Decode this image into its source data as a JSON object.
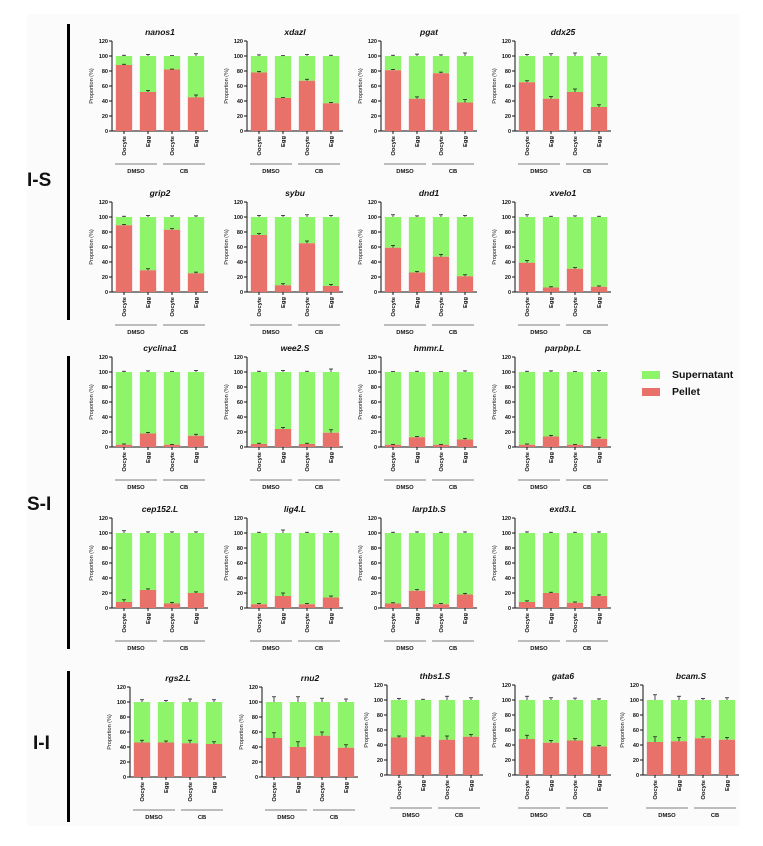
{
  "legend": [
    {
      "name": "Supernatant",
      "color": "#8ef56b"
    },
    {
      "name": "Pellet",
      "color": "#e8716a"
    }
  ],
  "groups": [
    {
      "label": "I-S"
    },
    {
      "label": "S-I"
    },
    {
      "label": "I-I"
    }
  ],
  "chart_data": [
    {
      "type": "bar",
      "stacked": true,
      "group": "I-S",
      "title": "nanos1",
      "ylabel": "Proportion (%)",
      "ylim": [
        0,
        120
      ],
      "yticks": [
        0,
        20,
        40,
        60,
        80,
        100,
        120
      ],
      "categories": [
        "Oocyte",
        "Egg",
        "Oocyte",
        "Egg"
      ],
      "treatments": [
        "DMSO",
        "CB"
      ],
      "series": [
        {
          "name": "Pellet",
          "values": [
            88,
            52,
            82,
            45
          ]
        },
        {
          "name": "Supernatant",
          "values": [
            12,
            48,
            18,
            55
          ]
        }
      ],
      "errors": [
        1,
        2,
        0.5,
        3
      ]
    },
    {
      "type": "bar",
      "stacked": true,
      "group": "I-S",
      "title": "xdazl",
      "ylabel": "Proportion (%)",
      "ylim": [
        0,
        120
      ],
      "yticks": [
        0,
        20,
        40,
        60,
        80,
        100,
        120
      ],
      "categories": [
        "Oocyte",
        "Egg",
        "Oocyte",
        "Egg"
      ],
      "treatments": [
        "DMSO",
        "CB"
      ],
      "series": [
        {
          "name": "Pellet",
          "values": [
            78,
            44,
            67,
            37
          ]
        },
        {
          "name": "Supernatant",
          "values": [
            22,
            56,
            33,
            63
          ]
        }
      ],
      "errors": [
        1.5,
        0.5,
        2,
        1
      ]
    },
    {
      "type": "bar",
      "stacked": true,
      "group": "I-S",
      "title": "pgat",
      "ylabel": "Proportion (%)",
      "ylim": [
        0,
        120
      ],
      "yticks": [
        0,
        20,
        40,
        60,
        80,
        100,
        120
      ],
      "categories": [
        "Oocyte",
        "Egg",
        "Oocyte",
        "Egg"
      ],
      "treatments": [
        "DMSO",
        "CB"
      ],
      "series": [
        {
          "name": "Pellet",
          "values": [
            81,
            43,
            77,
            38
          ]
        },
        {
          "name": "Supernatant",
          "values": [
            19,
            57,
            23,
            62
          ]
        }
      ],
      "errors": [
        1,
        2.5,
        1.5,
        4
      ]
    },
    {
      "type": "bar",
      "stacked": true,
      "group": "I-S",
      "title": "ddx25",
      "ylabel": "Proportion (%)",
      "ylim": [
        0,
        120
      ],
      "yticks": [
        0,
        20,
        40,
        60,
        80,
        100,
        120
      ],
      "categories": [
        "Oocyte",
        "Egg",
        "Oocyte",
        "Egg"
      ],
      "treatments": [
        "DMSO",
        "CB"
      ],
      "series": [
        {
          "name": "Pellet",
          "values": [
            65,
            43,
            52,
            32
          ]
        },
        {
          "name": "Supernatant",
          "values": [
            35,
            57,
            48,
            68
          ]
        }
      ],
      "errors": [
        2,
        3,
        4,
        3
      ]
    },
    {
      "type": "bar",
      "stacked": true,
      "group": "I-S",
      "title": "grip2",
      "ylabel": "Proportion (%)",
      "ylim": [
        0,
        120
      ],
      "yticks": [
        0,
        20,
        40,
        60,
        80,
        100,
        120
      ],
      "categories": [
        "Oocyte",
        "Egg",
        "Oocyte",
        "Egg"
      ],
      "treatments": [
        "DMSO",
        "CB"
      ],
      "series": [
        {
          "name": "Pellet",
          "values": [
            89,
            29,
            83,
            25
          ]
        },
        {
          "name": "Supernatant",
          "values": [
            11,
            71,
            17,
            75
          ]
        }
      ],
      "errors": [
        1,
        2,
        1.5,
        1.5
      ]
    },
    {
      "type": "bar",
      "stacked": true,
      "group": "I-S",
      "title": "sybu",
      "ylabel": "Proportion (%)",
      "ylim": [
        0,
        120
      ],
      "yticks": [
        0,
        20,
        40,
        60,
        80,
        100,
        120
      ],
      "categories": [
        "Oocyte",
        "Egg",
        "Oocyte",
        "Egg"
      ],
      "treatments": [
        "DMSO",
        "CB"
      ],
      "series": [
        {
          "name": "Pellet",
          "values": [
            76,
            9,
            65,
            8
          ]
        },
        {
          "name": "Supernatant",
          "values": [
            24,
            91,
            35,
            92
          ]
        }
      ],
      "errors": [
        2,
        2,
        3,
        2
      ]
    },
    {
      "type": "bar",
      "stacked": true,
      "group": "I-S",
      "title": "dnd1",
      "ylabel": "Proportion (%)",
      "ylim": [
        0,
        120
      ],
      "yticks": [
        0,
        20,
        40,
        60,
        80,
        100,
        120
      ],
      "categories": [
        "Oocyte",
        "Egg",
        "Oocyte",
        "Egg"
      ],
      "treatments": [
        "DMSO",
        "CB"
      ],
      "series": [
        {
          "name": "Pellet",
          "values": [
            59,
            26,
            47,
            21
          ]
        },
        {
          "name": "Supernatant",
          "values": [
            41,
            74,
            53,
            79
          ]
        }
      ],
      "errors": [
        3,
        1.5,
        3,
        2
      ]
    },
    {
      "type": "bar",
      "stacked": true,
      "group": "I-S",
      "title": "xvelo1",
      "ylabel": "Proportion (%)",
      "ylim": [
        0,
        120
      ],
      "yticks": [
        0,
        20,
        40,
        60,
        80,
        100,
        120
      ],
      "categories": [
        "Oocyte",
        "Egg",
        "Oocyte",
        "Egg"
      ],
      "treatments": [
        "DMSO",
        "CB"
      ],
      "series": [
        {
          "name": "Pellet",
          "values": [
            39,
            6,
            31,
            7
          ]
        },
        {
          "name": "Supernatant",
          "values": [
            61,
            94,
            69,
            93
          ]
        }
      ],
      "errors": [
        3,
        1,
        1.5,
        1
      ]
    },
    {
      "type": "bar",
      "stacked": true,
      "group": "S-I",
      "title": "cyclina1",
      "ylabel": "Proportion (%)",
      "ylim": [
        0,
        120
      ],
      "yticks": [
        0,
        20,
        40,
        60,
        80,
        100,
        120
      ],
      "categories": [
        "Oocyte",
        "Egg",
        "Oocyte",
        "Egg"
      ],
      "treatments": [
        "DMSO",
        "CB"
      ],
      "series": [
        {
          "name": "Pellet",
          "values": [
            3,
            18,
            3,
            15
          ]
        },
        {
          "name": "Supernatant",
          "values": [
            97,
            82,
            97,
            85
          ]
        }
      ],
      "errors": [
        1,
        1.5,
        0.5,
        2
      ]
    },
    {
      "type": "bar",
      "stacked": true,
      "group": "S-I",
      "title": "wee2.S",
      "ylabel": "Proportion (%)",
      "ylim": [
        0,
        120
      ],
      "yticks": [
        0,
        20,
        40,
        60,
        80,
        100,
        120
      ],
      "categories": [
        "Oocyte",
        "Egg",
        "Oocyte",
        "Egg"
      ],
      "treatments": [
        "DMSO",
        "CB"
      ],
      "series": [
        {
          "name": "Pellet",
          "values": [
            4,
            24,
            4,
            19
          ]
        },
        {
          "name": "Supernatant",
          "values": [
            96,
            76,
            96,
            81
          ]
        }
      ],
      "errors": [
        1,
        2,
        1,
        4
      ]
    },
    {
      "type": "bar",
      "stacked": true,
      "group": "S-I",
      "title": "hmmr.L",
      "ylabel": "Proportion (%)",
      "ylim": [
        0,
        120
      ],
      "yticks": [
        0,
        20,
        40,
        60,
        80,
        100,
        120
      ],
      "categories": [
        "Oocyte",
        "Egg",
        "Oocyte",
        "Egg"
      ],
      "treatments": [
        "DMSO",
        "CB"
      ],
      "series": [
        {
          "name": "Pellet",
          "values": [
            3,
            13,
            3,
            10
          ]
        },
        {
          "name": "Supernatant",
          "values": [
            97,
            87,
            97,
            90
          ]
        }
      ],
      "errors": [
        0.5,
        1,
        0.5,
        1.5
      ]
    },
    {
      "type": "bar",
      "stacked": true,
      "group": "S-I",
      "title": "parpbp.L",
      "ylabel": "Proportion (%)",
      "ylim": [
        0,
        120
      ],
      "yticks": [
        0,
        20,
        40,
        60,
        80,
        100,
        120
      ],
      "categories": [
        "Oocyte",
        "Egg",
        "Oocyte",
        "Egg"
      ],
      "treatments": [
        "DMSO",
        "CB"
      ],
      "series": [
        {
          "name": "Pellet",
          "values": [
            3,
            14,
            3,
            11
          ]
        },
        {
          "name": "Supernatant",
          "values": [
            97,
            86,
            97,
            89
          ]
        }
      ],
      "errors": [
        1,
        1.5,
        0.5,
        2
      ]
    },
    {
      "type": "bar",
      "stacked": true,
      "group": "S-I",
      "title": "cep152.L",
      "ylabel": "Proportion (%)",
      "ylim": [
        0,
        120
      ],
      "yticks": [
        0,
        20,
        40,
        60,
        80,
        100,
        120
      ],
      "categories": [
        "Oocyte",
        "Egg",
        "Oocyte",
        "Egg"
      ],
      "treatments": [
        "DMSO",
        "CB"
      ],
      "series": [
        {
          "name": "Pellet",
          "values": [
            8,
            24,
            6,
            20
          ]
        },
        {
          "name": "Supernatant",
          "values": [
            92,
            76,
            94,
            80
          ]
        }
      ],
      "errors": [
        3,
        1.5,
        1.5,
        1.5
      ]
    },
    {
      "type": "bar",
      "stacked": true,
      "group": "S-I",
      "title": "lig4.L",
      "ylabel": "Proportion (%)",
      "ylim": [
        0,
        120
      ],
      "yticks": [
        0,
        20,
        40,
        60,
        80,
        100,
        120
      ],
      "categories": [
        "Oocyte",
        "Egg",
        "Oocyte",
        "Egg"
      ],
      "treatments": [
        "DMSO",
        "CB"
      ],
      "series": [
        {
          "name": "Pellet",
          "values": [
            5,
            16,
            5,
            14
          ]
        },
        {
          "name": "Supernatant",
          "values": [
            95,
            84,
            95,
            86
          ]
        }
      ],
      "errors": [
        1,
        4,
        1,
        2
      ]
    },
    {
      "type": "bar",
      "stacked": true,
      "group": "S-I",
      "title": "larp1b.S",
      "ylabel": "Proportion (%)",
      "ylim": [
        0,
        120
      ],
      "yticks": [
        0,
        20,
        40,
        60,
        80,
        100,
        120
      ],
      "categories": [
        "Oocyte",
        "Egg",
        "Oocyte",
        "Egg"
      ],
      "treatments": [
        "DMSO",
        "CB"
      ],
      "series": [
        {
          "name": "Pellet",
          "values": [
            6,
            23,
            5,
            18
          ]
        },
        {
          "name": "Supernatant",
          "values": [
            94,
            77,
            95,
            82
          ]
        }
      ],
      "errors": [
        1,
        1.5,
        1,
        1.5
      ]
    },
    {
      "type": "bar",
      "stacked": true,
      "group": "S-I",
      "title": "exd3.L",
      "ylabel": "Proportion (%)",
      "ylim": [
        0,
        120
      ],
      "yticks": [
        0,
        20,
        40,
        60,
        80,
        100,
        120
      ],
      "categories": [
        "Oocyte",
        "Egg",
        "Oocyte",
        "Egg"
      ],
      "treatments": [
        "DMSO",
        "CB"
      ],
      "series": [
        {
          "name": "Pellet",
          "values": [
            8,
            20,
            7,
            16
          ]
        },
        {
          "name": "Supernatant",
          "values": [
            92,
            80,
            93,
            84
          ]
        }
      ],
      "errors": [
        1.5,
        1,
        1,
        1.5
      ]
    },
    {
      "type": "bar",
      "stacked": true,
      "group": "I-I",
      "title": "rgs2.L",
      "ylabel": "Proportion (%)",
      "ylim": [
        0,
        120
      ],
      "yticks": [
        0,
        20,
        40,
        60,
        80,
        100,
        120
      ],
      "categories": [
        "Oocyte",
        "Egg",
        "Oocyte",
        "Egg"
      ],
      "treatments": [
        "DMSO",
        "CB"
      ],
      "series": [
        {
          "name": "Pellet",
          "values": [
            46,
            46,
            45,
            44
          ]
        },
        {
          "name": "Supernatant",
          "values": [
            54,
            54,
            55,
            56
          ]
        }
      ],
      "errors": [
        3,
        2,
        4,
        3
      ]
    },
    {
      "type": "bar",
      "stacked": true,
      "group": "I-I",
      "title": "rnu2",
      "ylabel": "Proportion (%)",
      "ylim": [
        0,
        120
      ],
      "yticks": [
        0,
        20,
        40,
        60,
        80,
        100,
        120
      ],
      "categories": [
        "Oocyte",
        "Egg",
        "Oocyte",
        "Egg"
      ],
      "treatments": [
        "DMSO",
        "CB"
      ],
      "series": [
        {
          "name": "Pellet",
          "values": [
            52,
            40,
            55,
            39
          ]
        },
        {
          "name": "Supernatant",
          "values": [
            48,
            60,
            45,
            61
          ]
        }
      ],
      "errors": [
        7,
        7,
        5,
        4
      ]
    },
    {
      "type": "bar",
      "stacked": true,
      "group": "I-I",
      "title": "thbs1.S",
      "ylabel": "Proportion (%)",
      "ylim": [
        0,
        120
      ],
      "yticks": [
        0,
        20,
        40,
        60,
        80,
        100,
        120
      ],
      "categories": [
        "Oocyte",
        "Egg",
        "Oocyte",
        "Egg"
      ],
      "treatments": [
        "DMSO",
        "CB"
      ],
      "series": [
        {
          "name": "Pellet",
          "values": [
            50,
            51,
            47,
            51
          ]
        },
        {
          "name": "Supernatant",
          "values": [
            50,
            49,
            53,
            49
          ]
        }
      ],
      "errors": [
        2,
        1,
        5,
        3
      ]
    },
    {
      "type": "bar",
      "stacked": true,
      "group": "I-I",
      "title": "gata6",
      "ylabel": "Proportion (%)",
      "ylim": [
        0,
        120
      ],
      "yticks": [
        0,
        20,
        40,
        60,
        80,
        100,
        120
      ],
      "categories": [
        "Oocyte",
        "Egg",
        "Oocyte",
        "Egg"
      ],
      "treatments": [
        "DMSO",
        "CB"
      ],
      "series": [
        {
          "name": "Pellet",
          "values": [
            48,
            43,
            46,
            38
          ]
        },
        {
          "name": "Supernatant",
          "values": [
            52,
            57,
            54,
            62
          ]
        }
      ],
      "errors": [
        5,
        3,
        2.5,
        1.5
      ]
    },
    {
      "type": "bar",
      "stacked": true,
      "group": "I-I",
      "title": "bcam.S",
      "ylabel": "Proportion (%)",
      "ylim": [
        0,
        120
      ],
      "yticks": [
        0,
        20,
        40,
        60,
        80,
        100,
        120
      ],
      "categories": [
        "Oocyte",
        "Egg",
        "Oocyte",
        "Egg"
      ],
      "treatments": [
        "DMSO",
        "CB"
      ],
      "series": [
        {
          "name": "Pellet",
          "values": [
            44,
            45,
            49,
            47
          ]
        },
        {
          "name": "Supernatant",
          "values": [
            56,
            55,
            51,
            53
          ]
        }
      ],
      "errors": [
        7,
        5,
        2,
        3
      ]
    }
  ]
}
